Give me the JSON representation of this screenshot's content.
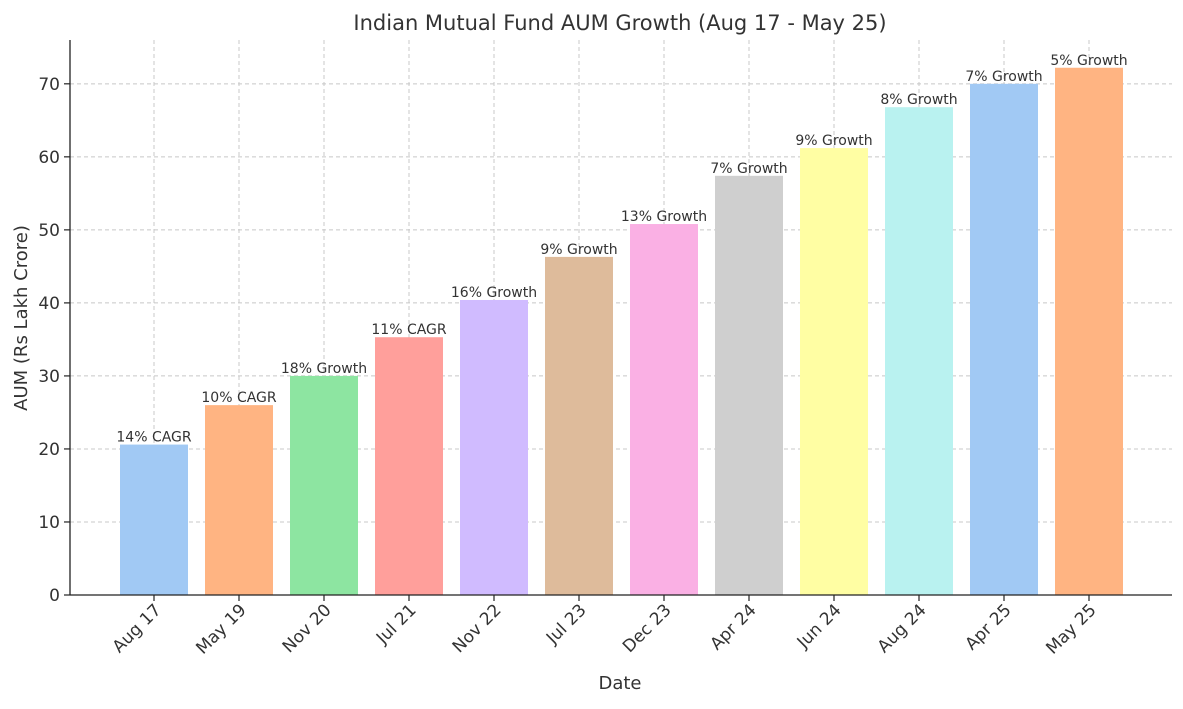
{
  "chart_data": {
    "type": "bar",
    "title": "Indian Mutual Fund AUM Growth (Aug 17 - May 25)",
    "xlabel": "Date",
    "ylabel": "AUM (Rs Lakh Crore)",
    "ylim": [
      0,
      76
    ],
    "yticks": [
      0,
      10,
      20,
      30,
      40,
      50,
      60,
      70
    ],
    "grid": true,
    "categories": [
      "Aug 17",
      "May 19",
      "Nov 20",
      "Jul 21",
      "Nov 22",
      "Jul 23",
      "Dec 23",
      "Apr 24",
      "Jun 24",
      "Aug 24",
      "Apr 25",
      "May 25"
    ],
    "values": [
      20.6,
      26.0,
      30.0,
      35.3,
      40.4,
      46.3,
      50.8,
      57.4,
      61.2,
      66.8,
      70.0,
      72.2
    ],
    "bar_labels": [
      "14% CAGR",
      "10% CAGR",
      "18% Growth",
      "11% CAGR",
      "16% Growth",
      "9% Growth",
      "13% Growth",
      "7% Growth",
      "9% Growth",
      "8% Growth",
      "7% Growth",
      "5% Growth"
    ],
    "colors": [
      "#a1c9f4",
      "#ffb482",
      "#8de5a1",
      "#ff9f9b",
      "#d0bbff",
      "#debb9b",
      "#fab0e4",
      "#cfcfcf",
      "#fffea3",
      "#b9f2f0",
      "#a1c9f4",
      "#ffb482"
    ]
  }
}
